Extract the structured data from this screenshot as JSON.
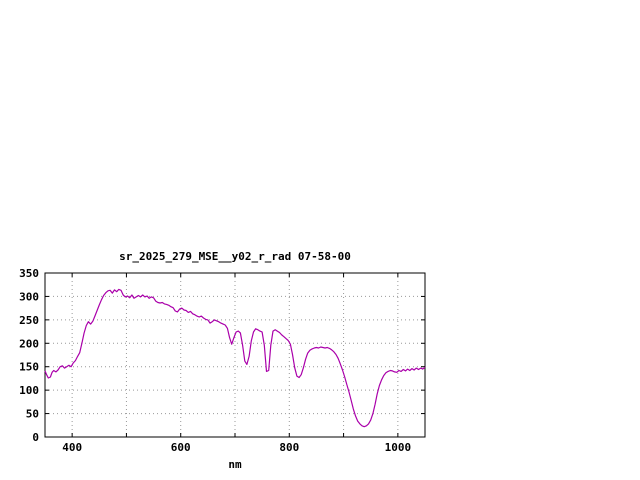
{
  "page": {
    "background_color": "#ffffff"
  },
  "chart_data": {
    "type": "line",
    "title": "sr_2025_279_MSE__y02_r_rad 07-58-00",
    "xlabel": "nm",
    "ylabel": "",
    "x_range": [
      350,
      1050
    ],
    "y_range": [
      0,
      350
    ],
    "x_label_ticks": [
      400,
      600,
      800,
      1000
    ],
    "x_grid_ticks": [
      400,
      500,
      600,
      700,
      800,
      900,
      1000
    ],
    "y_ticks": [
      0,
      50,
      100,
      150,
      200,
      250,
      300,
      350
    ],
    "grid": true,
    "grid_color": "#999999",
    "border_color": "#000000",
    "legend_position": "none",
    "series": [
      {
        "name": "sr_2025_279_MSE__y02_r_rad",
        "color": "#aa00aa",
        "points": [
          [
            350,
            141
          ],
          [
            353,
            133
          ],
          [
            356,
            126
          ],
          [
            360,
            128
          ],
          [
            363,
            138
          ],
          [
            366,
            142
          ],
          [
            370,
            139
          ],
          [
            374,
            143
          ],
          [
            378,
            150
          ],
          [
            382,
            152
          ],
          [
            386,
            147
          ],
          [
            390,
            150
          ],
          [
            394,
            153
          ],
          [
            398,
            150
          ],
          [
            402,
            158
          ],
          [
            406,
            163
          ],
          [
            410,
            172
          ],
          [
            414,
            180
          ],
          [
            418,
            200
          ],
          [
            422,
            222
          ],
          [
            426,
            238
          ],
          [
            430,
            246
          ],
          [
            434,
            241
          ],
          [
            438,
            247
          ],
          [
            442,
            258
          ],
          [
            446,
            270
          ],
          [
            450,
            282
          ],
          [
            454,
            293
          ],
          [
            458,
            302
          ],
          [
            462,
            308
          ],
          [
            466,
            312
          ],
          [
            470,
            313
          ],
          [
            474,
            307
          ],
          [
            478,
            314
          ],
          [
            482,
            310
          ],
          [
            486,
            315
          ],
          [
            490,
            313
          ],
          [
            494,
            303
          ],
          [
            498,
            299
          ],
          [
            502,
            301
          ],
          [
            506,
            297
          ],
          [
            510,
            303
          ],
          [
            514,
            296
          ],
          [
            518,
            299
          ],
          [
            522,
            302
          ],
          [
            526,
            299
          ],
          [
            530,
            303
          ],
          [
            534,
            299
          ],
          [
            538,
            301
          ],
          [
            542,
            296
          ],
          [
            546,
            299
          ],
          [
            550,
            297
          ],
          [
            554,
            290
          ],
          [
            558,
            287
          ],
          [
            562,
            286
          ],
          [
            566,
            287
          ],
          [
            570,
            284
          ],
          [
            574,
            283
          ],
          [
            578,
            281
          ],
          [
            582,
            278
          ],
          [
            586,
            276
          ],
          [
            590,
            269
          ],
          [
            594,
            267
          ],
          [
            598,
            273
          ],
          [
            602,
            275
          ],
          [
            606,
            271
          ],
          [
            610,
            270
          ],
          [
            614,
            266
          ],
          [
            618,
            268
          ],
          [
            622,
            263
          ],
          [
            626,
            261
          ],
          [
            630,
            258
          ],
          [
            634,
            256
          ],
          [
            638,
            258
          ],
          [
            642,
            254
          ],
          [
            646,
            251
          ],
          [
            650,
            250
          ],
          [
            654,
            243
          ],
          [
            658,
            246
          ],
          [
            662,
            250
          ],
          [
            666,
            248
          ],
          [
            670,
            246
          ],
          [
            674,
            243
          ],
          [
            678,
            241
          ],
          [
            682,
            239
          ],
          [
            686,
            232
          ],
          [
            690,
            212
          ],
          [
            694,
            198
          ],
          [
            698,
            212
          ],
          [
            702,
            224
          ],
          [
            706,
            226
          ],
          [
            710,
            222
          ],
          [
            714,
            196
          ],
          [
            718,
            162
          ],
          [
            722,
            155
          ],
          [
            726,
            172
          ],
          [
            730,
            205
          ],
          [
            734,
            224
          ],
          [
            738,
            231
          ],
          [
            742,
            229
          ],
          [
            746,
            226
          ],
          [
            750,
            224
          ],
          [
            754,
            196
          ],
          [
            758,
            140
          ],
          [
            762,
            142
          ],
          [
            766,
            196
          ],
          [
            770,
            226
          ],
          [
            774,
            229
          ],
          [
            778,
            226
          ],
          [
            782,
            223
          ],
          [
            786,
            218
          ],
          [
            790,
            214
          ],
          [
            794,
            210
          ],
          [
            798,
            206
          ],
          [
            802,
            198
          ],
          [
            806,
            176
          ],
          [
            810,
            148
          ],
          [
            814,
            130
          ],
          [
            818,
            127
          ],
          [
            822,
            133
          ],
          [
            826,
            148
          ],
          [
            830,
            166
          ],
          [
            834,
            179
          ],
          [
            838,
            185
          ],
          [
            842,
            188
          ],
          [
            846,
            190
          ],
          [
            850,
            191
          ],
          [
            854,
            190
          ],
          [
            858,
            192
          ],
          [
            862,
            191
          ],
          [
            866,
            190
          ],
          [
            870,
            191
          ],
          [
            874,
            189
          ],
          [
            878,
            186
          ],
          [
            882,
            182
          ],
          [
            886,
            176
          ],
          [
            890,
            168
          ],
          [
            894,
            156
          ],
          [
            898,
            143
          ],
          [
            902,
            128
          ],
          [
            906,
            112
          ],
          [
            910,
            96
          ],
          [
            914,
            78
          ],
          [
            918,
            60
          ],
          [
            922,
            45
          ],
          [
            926,
            34
          ],
          [
            930,
            28
          ],
          [
            934,
            24
          ],
          [
            938,
            22
          ],
          [
            942,
            24
          ],
          [
            946,
            28
          ],
          [
            950,
            36
          ],
          [
            954,
            50
          ],
          [
            958,
            70
          ],
          [
            962,
            92
          ],
          [
            966,
            110
          ],
          [
            970,
            122
          ],
          [
            974,
            131
          ],
          [
            978,
            137
          ],
          [
            982,
            140
          ],
          [
            986,
            142
          ],
          [
            990,
            141
          ],
          [
            994,
            139
          ],
          [
            998,
            138
          ],
          [
            1002,
            142
          ],
          [
            1006,
            140
          ],
          [
            1010,
            144
          ],
          [
            1014,
            141
          ],
          [
            1018,
            145
          ],
          [
            1022,
            142
          ],
          [
            1026,
            146
          ],
          [
            1030,
            143
          ],
          [
            1034,
            147
          ],
          [
            1038,
            144
          ],
          [
            1042,
            147
          ],
          [
            1046,
            145
          ],
          [
            1050,
            149
          ]
        ]
      }
    ]
  }
}
